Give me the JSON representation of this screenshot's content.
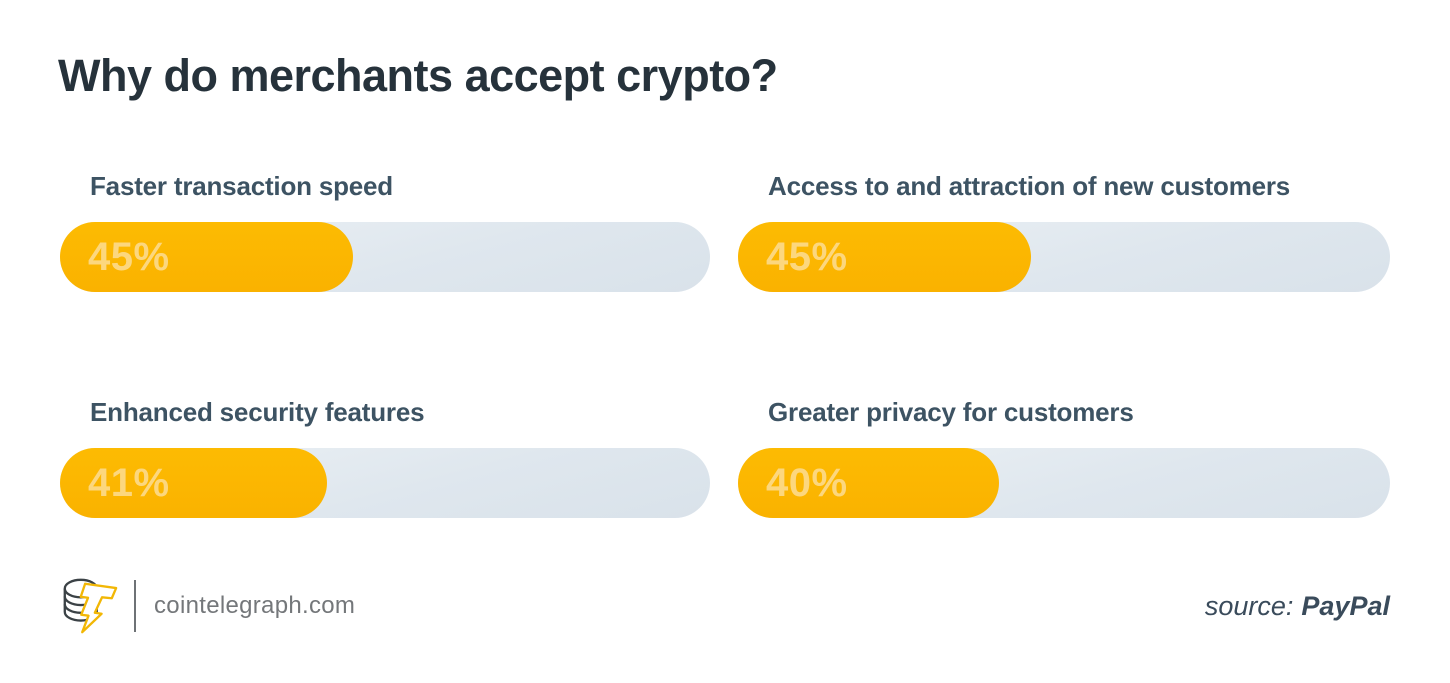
{
  "title": "Why do merchants accept crypto?",
  "chart_data": {
    "type": "bar",
    "orientation": "horizontal",
    "layout": "2x2-grid",
    "title": "Why do merchants accept crypto?",
    "categories": [
      "Faster transaction speed",
      "Access to and attraction of new customers",
      "Enhanced security features",
      "Greater privacy for customers"
    ],
    "values": [
      45,
      45,
      41,
      40
    ],
    "unit": "%",
    "xlim": [
      0,
      100
    ],
    "grid": false,
    "legend": false
  },
  "bars": [
    {
      "label": "Faster transaction speed",
      "value": 45,
      "display": "45%"
    },
    {
      "label": "Access to and attraction of new customers",
      "value": 45,
      "display": "45%"
    },
    {
      "label": "Enhanced security features",
      "value": 41,
      "display": "41%"
    },
    {
      "label": "Greater privacy for customers",
      "value": 40,
      "display": "40%"
    }
  ],
  "footer": {
    "brand": "cointelegraph.com",
    "source_label": "source:",
    "source_value": "PayPal"
  },
  "colors": {
    "accent": "#FBB501",
    "accent_value_text": "#FCD77E",
    "track": "#DFE7EE",
    "title_text": "#26323B",
    "label_text": "#3D5363",
    "footer_gray": "#74777A",
    "source_text": "#3A4B5B"
  },
  "icons": {
    "logo": "cointelegraph-coins-bolt-logo"
  }
}
